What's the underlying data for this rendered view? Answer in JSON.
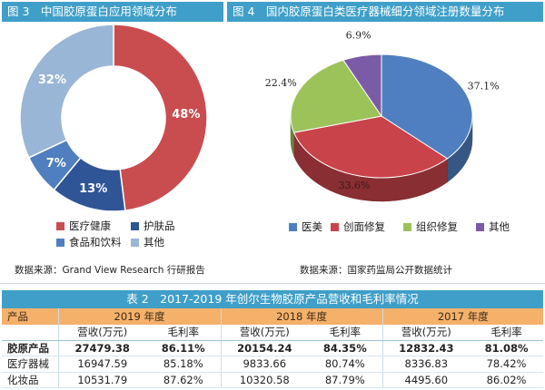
{
  "fig3": {
    "title": "图 3　中国胶原蛋白应用领域分布",
    "source": "数据来源：Grand View Research 行研报告",
    "colors": {
      "medical": "#c94c4f",
      "skincare": "#2f5597",
      "food": "#4f7fbf",
      "other": "#9ab6d6"
    }
  },
  "fig4": {
    "title": "图 4　国内胶原蛋白类医疗器械细分领域注册数量分布",
    "source": "数据来源：国家药监局公开数据统计",
    "colors": {
      "beauty": "#4f7fc0",
      "wound": "#c9444a",
      "tissue": "#9cc25a",
      "other": "#7b5ba6"
    }
  },
  "chart_data": [
    {
      "type": "pie",
      "subtype": "donut",
      "title": "图 3　中国胶原蛋白应用领域分布",
      "categories": [
        "医疗健康",
        "护肤品",
        "食品和饮料",
        "其他"
      ],
      "values": [
        48,
        13,
        7,
        32
      ],
      "value_labels": [
        "48%",
        "13%",
        "7%",
        "32%"
      ],
      "legend_position": "bottom"
    },
    {
      "type": "pie",
      "subtype": "3d",
      "title": "图 4　国内胶原蛋白类医疗器械细分领域注册数量分布",
      "categories": [
        "医美",
        "创面修复",
        "组织修复",
        "其他"
      ],
      "values": [
        37.1,
        33.6,
        22.4,
        6.9
      ],
      "value_labels": [
        "37.1%",
        "33.6%",
        "22.4%",
        "6.9%"
      ],
      "legend_position": "bottom"
    },
    {
      "type": "table",
      "title": "表 2　2017-2019 年创尔生物胶原产品营收和毛利率情况",
      "row_header": "产品",
      "years": [
        "2019 年度",
        "2018 年度",
        "2017 年度"
      ],
      "sub_headers": [
        "营收(万元)",
        "毛利率"
      ],
      "rows": [
        {
          "label": "胶原产品",
          "bold": true,
          "cells": [
            "27479.38",
            "86.11%",
            "20154.24",
            "84.35%",
            "12832.43",
            "81.08%"
          ]
        },
        {
          "label": "医疗器械",
          "bold": false,
          "cells": [
            "16947.59",
            "85.18%",
            "9833.66",
            "80.74%",
            "8336.83",
            "78.42%"
          ]
        },
        {
          "label": "化妆品",
          "bold": false,
          "cells": [
            "10531.79",
            "87.62%",
            "10320.58",
            "87.79%",
            "4495.60",
            "86.02%"
          ]
        }
      ]
    }
  ]
}
